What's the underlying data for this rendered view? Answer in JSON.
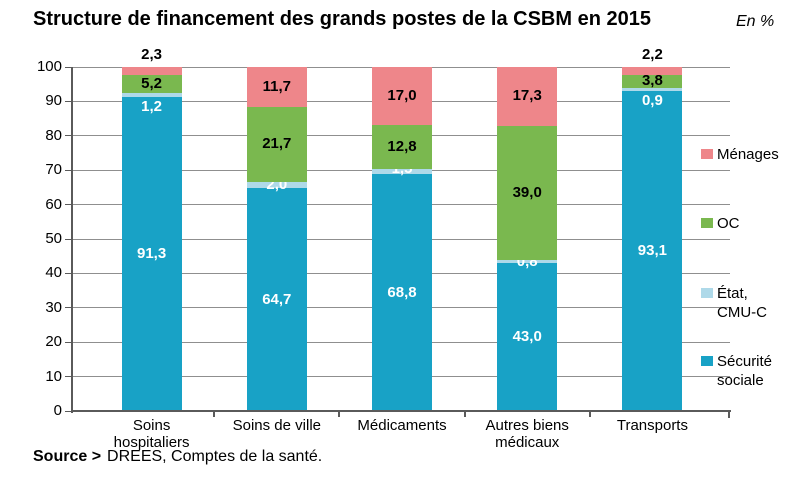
{
  "title": "Structure de financement des grands postes de la CSBM en 2015",
  "unit_label": "En %",
  "source": {
    "prefix": "Source >",
    "text": "DREES, Comptes de la santé."
  },
  "chart_data": {
    "type": "bar",
    "stacked": true,
    "title": "Structure de financement des grands postes de la CSBM en 2015",
    "unit": "En %",
    "categories": [
      "Soins hospitaliers",
      "Soins de ville",
      "Médicaments",
      "Autres biens médicaux",
      "Transports"
    ],
    "series": [
      {
        "name": "Sécurité sociale",
        "color": "#18a2c6",
        "label_color": "#ffffff",
        "values": [
          91.3,
          64.7,
          68.8,
          43.0,
          93.1
        ],
        "labels": [
          "91,3",
          "64,7",
          "68,8",
          "43,0",
          "93,1"
        ]
      },
      {
        "name": "État, CMU-C",
        "color": "#aed9e9",
        "label_color": "#ffffff",
        "values": [
          1.2,
          2.0,
          1.5,
          0.8,
          0.9
        ],
        "labels": [
          "1,2",
          "2,0",
          "1,5",
          "0,8",
          "0,9"
        ],
        "label_dy": [
          12,
          0,
          -3,
          0,
          12
        ]
      },
      {
        "name": "OC",
        "color": "#7ab84f",
        "label_color": "#000000",
        "values": [
          5.2,
          21.7,
          12.8,
          39.0,
          3.8
        ],
        "labels": [
          "5,2",
          "21,7",
          "12,8",
          "39,0",
          "3,8"
        ]
      },
      {
        "name": "Ménages",
        "color": "#ee868a",
        "label_color": "#000000",
        "values": [
          2.3,
          11.7,
          17.0,
          17.3,
          2.2
        ],
        "labels": [
          "2,3",
          "11,7",
          "17,0",
          "17,3",
          "2,2"
        ],
        "label_outside": [
          true,
          false,
          false,
          false,
          true
        ]
      }
    ],
    "ylim": [
      0,
      100
    ],
    "yticks": [
      0,
      10,
      20,
      30,
      40,
      50,
      60,
      70,
      80,
      90,
      100
    ],
    "grid": true,
    "legend_position": "right",
    "legend": [
      {
        "label": "Ménages",
        "series": "Ménages"
      },
      {
        "label": "OC",
        "series": "OC"
      },
      {
        "label": "État,\nCMU-C",
        "series": "État, CMU-C"
      },
      {
        "label": "Sécurité\nsociale",
        "series": "Sécurité sociale"
      }
    ]
  }
}
